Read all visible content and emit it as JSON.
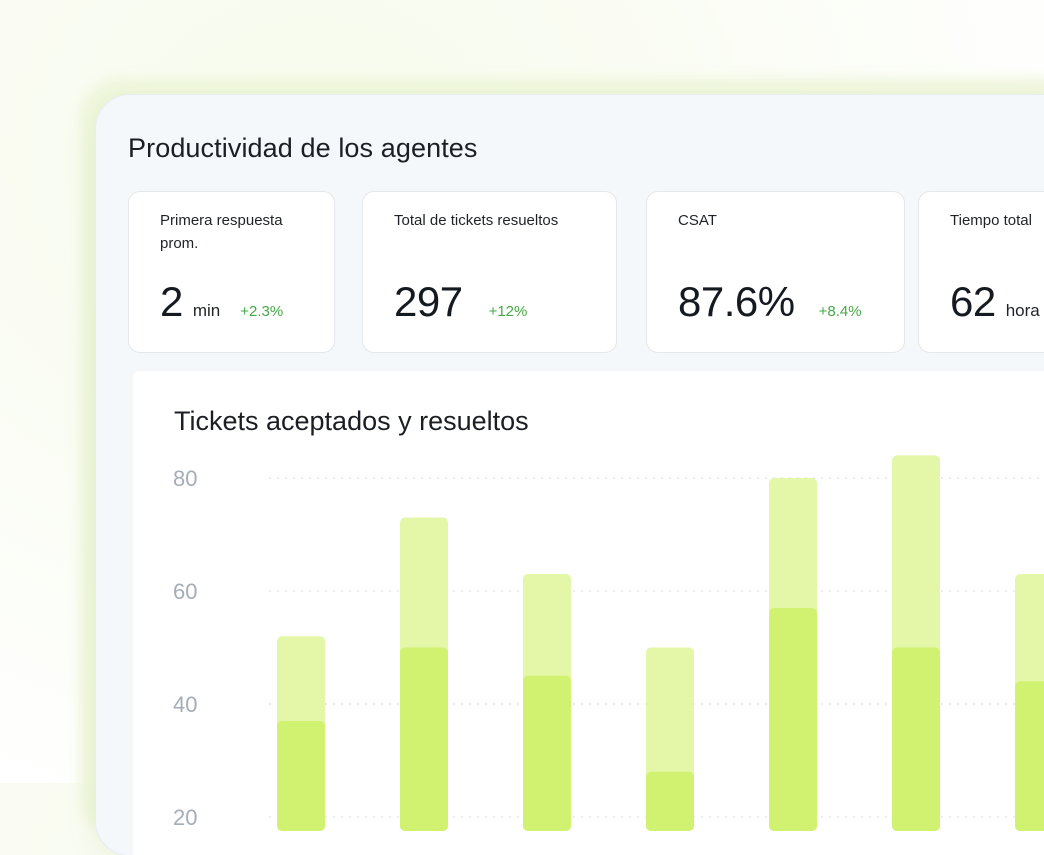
{
  "page": {
    "title": "Productividad de los agentes"
  },
  "metrics": [
    {
      "label": "Primera respuesta prom.",
      "value": "2",
      "unit": "min",
      "delta": "+2.3%"
    },
    {
      "label": "Total de tickets resueltos",
      "value": "297",
      "unit": "",
      "delta": "+12%"
    },
    {
      "label": "CSAT",
      "value": "87.6%",
      "unit": "",
      "delta": "+8.4%"
    },
    {
      "label": "Tiempo total",
      "value": "62",
      "unit": "hora",
      "delta": ""
    }
  ],
  "chart_data": {
    "type": "bar",
    "title": "Tickets aceptados y resueltos",
    "xlabel": "",
    "ylabel": "",
    "ylim": [
      0,
      80
    ],
    "yticks": [
      20,
      40,
      60,
      80
    ],
    "grid": true,
    "stacked": "overlay",
    "categories": [
      "",
      "",
      "",
      "",
      "",
      "",
      ""
    ],
    "series": [
      {
        "values": [
          52,
          73,
          63,
          50,
          80,
          84,
          63
        ],
        "color": "#e4f7a8"
      },
      {
        "values": [
          37,
          50,
          45,
          28,
          57,
          50,
          44
        ],
        "color": "#d1f270"
      }
    ]
  },
  "colors": {
    "accent_light": "#e4f7a8",
    "accent": "#d1f270",
    "delta_positive": "#46a945",
    "tick_text": "#a4adb8"
  }
}
